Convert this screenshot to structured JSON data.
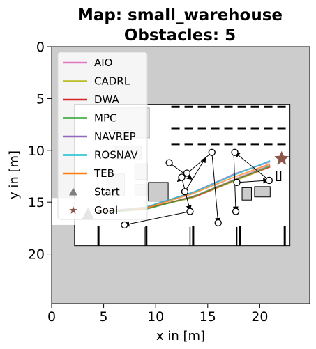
{
  "chart_data": {
    "type": "line",
    "title_lines": [
      "Map: small_warehouse",
      "Obstacles: 5"
    ],
    "xlabel": "x in [m]",
    "ylabel": "y in [m]",
    "xlim": [
      0,
      24.8
    ],
    "ylim": [
      0,
      24.8
    ],
    "y_inverted": true,
    "xticks": [
      0,
      5,
      10,
      15,
      20
    ],
    "yticks": [
      0,
      5,
      10,
      15,
      20
    ],
    "grid": false,
    "legend_placement": "upper-left",
    "background_color": "#cccccc",
    "free_space_color": "#ffffff",
    "series": [
      {
        "name": "AIO",
        "color": "#e377c2",
        "values": [
          [
            4.5,
            16.0
          ],
          [
            9,
            15.7
          ],
          [
            14,
            14.3
          ],
          [
            18,
            12.6
          ],
          [
            21,
            11.4
          ]
        ]
      },
      {
        "name": "CADRL",
        "color": "#bcbd22",
        "values": [
          [
            4.5,
            15.9
          ],
          [
            9,
            15.6
          ],
          [
            13.5,
            14.6
          ],
          [
            17.5,
            13.0
          ],
          [
            21,
            11.6
          ]
        ]
      },
      {
        "name": "DWA",
        "color": "#d62728",
        "values": [
          [
            4.5,
            16.0
          ],
          [
            9,
            15.6
          ],
          [
            14,
            14.4
          ],
          [
            18,
            12.7
          ],
          [
            21,
            11.6
          ]
        ]
      },
      {
        "name": "MPC",
        "color": "#2ca02c",
        "values": [
          [
            4.5,
            16.0
          ],
          [
            9,
            15.7
          ],
          [
            13.5,
            14.5
          ],
          [
            18,
            12.7
          ],
          [
            21,
            11.5
          ]
        ]
      },
      {
        "name": "NAVREP",
        "color": "#9467bd",
        "values": [
          [
            4.5,
            15.9
          ],
          [
            9,
            15.5
          ],
          [
            13.5,
            14.1
          ],
          [
            17.5,
            12.3
          ],
          [
            21,
            11.1
          ]
        ]
      },
      {
        "name": "ROSNAV",
        "color": "#17becf",
        "values": [
          [
            4.5,
            16.0
          ],
          [
            9,
            15.5
          ],
          [
            14,
            13.9
          ],
          [
            18,
            12.2
          ],
          [
            21,
            11.0
          ]
        ]
      },
      {
        "name": "TEB",
        "color": "#ff7f0e",
        "values": [
          [
            4.5,
            15.9
          ],
          [
            9,
            15.6
          ],
          [
            13.5,
            14.2
          ],
          [
            17.5,
            12.6
          ],
          [
            21,
            11.3
          ]
        ]
      }
    ],
    "start": {
      "label": "Start",
      "x": 3.5,
      "y": 16.2,
      "color": "#808080",
      "marker": "triangle"
    },
    "goal": {
      "label": "Goal",
      "x": 22.1,
      "y": 10.8,
      "color": "#8c564b",
      "marker": "star"
    },
    "dynamic_obstacle_waypoints": [
      {
        "from": [
          11.3,
          11.2
        ],
        "to": [
          13.5,
          12.8
        ]
      },
      {
        "from": [
          13.0,
          12.2
        ],
        "to": [
          12.5,
          12.6
        ]
      },
      {
        "from": [
          12.5,
          12.6
        ],
        "to": [
          13.3,
          15.8
        ]
      },
      {
        "from": [
          15.4,
          10.2
        ],
        "to": [
          16.0,
          17.0
        ]
      },
      {
        "from": [
          13.3,
          15.9
        ],
        "to": [
          7.0,
          17.2
        ]
      },
      {
        "from": [
          12.8,
          14.0
        ],
        "to": [
          14.8,
          10.7
        ]
      },
      {
        "from": [
          17.5,
          10.2
        ],
        "to": [
          17.7,
          15.9
        ]
      },
      {
        "from": [
          17.8,
          13.1
        ],
        "to": [
          20.8,
          12.9
        ]
      },
      {
        "from": [
          15.4,
          10.2
        ],
        "to": [
          12.1,
          13.0
        ]
      },
      {
        "from": [
          20.9,
          12.9
        ],
        "to": [
          17.6,
          10.2
        ]
      }
    ],
    "obstacle_circles": [
      [
        11.3,
        11.2
      ],
      [
        12.5,
        12.6
      ],
      [
        13.0,
        12.2
      ],
      [
        12.8,
        14.0
      ],
      [
        15.4,
        10.2
      ],
      [
        17.6,
        10.2
      ],
      [
        17.8,
        13.1
      ],
      [
        20.9,
        12.9
      ],
      [
        13.3,
        15.9
      ],
      [
        17.7,
        15.9
      ],
      [
        7.0,
        17.2
      ],
      [
        16.0,
        17.0
      ]
    ]
  }
}
